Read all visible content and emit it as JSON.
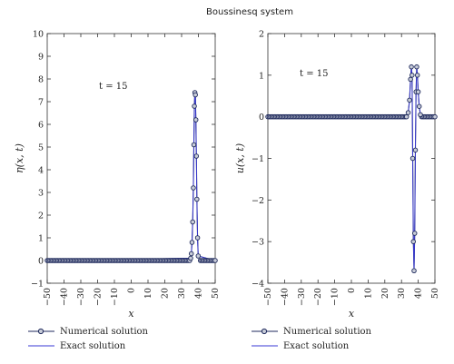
{
  "figure_title": "Boussinesq system",
  "colors": {
    "numerical": "#1f2a5c",
    "exact": "#3a3ad6",
    "marker_fill": "#c8ccd8"
  },
  "legend": {
    "numerical_label": "Numerical solution",
    "exact_label": "Exact solution"
  },
  "chart_data": [
    {
      "type": "line",
      "panel": "left",
      "xlabel": "x",
      "ylabel": "η(x, t)",
      "annotation": "t = 15",
      "xlim": [
        -50,
        50
      ],
      "ylim": [
        -1,
        10
      ],
      "xticks": [
        -50,
        -40,
        -30,
        -20,
        -10,
        0,
        10,
        20,
        30,
        40,
        50
      ],
      "yticks": [
        -1,
        0,
        1,
        2,
        3,
        4,
        5,
        6,
        7,
        8,
        9,
        10
      ],
      "series": [
        {
          "name": "Numerical solution",
          "x": [
            -50,
            35.4,
            35.8,
            36.2,
            36.6,
            37.0,
            37.3,
            37.6,
            37.9,
            38.2,
            38.5,
            38.8,
            39.1,
            39.5,
            39.9,
            50
          ],
          "y": [
            0,
            0.1,
            0.3,
            0.8,
            1.7,
            3.2,
            5.1,
            6.8,
            7.4,
            7.3,
            6.2,
            4.6,
            2.7,
            1.0,
            0.2,
            0
          ]
        },
        {
          "name": "Exact solution",
          "x": [
            -50,
            35.4,
            35.8,
            36.2,
            36.6,
            37.0,
            37.3,
            37.6,
            37.9,
            38.2,
            38.5,
            38.8,
            39.1,
            39.5,
            39.9,
            50
          ],
          "y": [
            0,
            0.1,
            0.3,
            0.8,
            1.7,
            3.2,
            5.1,
            6.8,
            7.4,
            7.3,
            6.2,
            4.6,
            2.7,
            1.0,
            0.2,
            0
          ]
        }
      ]
    },
    {
      "type": "line",
      "panel": "right",
      "xlabel": "x",
      "ylabel": "u(x, t)",
      "annotation": "t = 15",
      "xlim": [
        -50,
        50
      ],
      "ylim": [
        -4,
        2
      ],
      "xticks": [
        -50,
        -40,
        -30,
        -20,
        -10,
        0,
        10,
        20,
        30,
        40,
        50
      ],
      "yticks": [
        -4,
        -3,
        -2,
        -1,
        0,
        1,
        2
      ],
      "series": [
        {
          "name": "Numerical solution",
          "x": [
            -50,
            33.0,
            34.0,
            34.8,
            35.4,
            35.9,
            36.3,
            36.7,
            37.1,
            37.5,
            37.9,
            38.3,
            38.7,
            39.1,
            39.5,
            40.0,
            40.6,
            41.3,
            50
          ],
          "y": [
            0,
            0.0,
            0.1,
            0.4,
            0.9,
            1.2,
            1.0,
            -1.0,
            -3.0,
            -3.7,
            -2.8,
            -0.8,
            0.6,
            1.2,
            1.0,
            0.6,
            0.25,
            0.05,
            0
          ]
        },
        {
          "name": "Exact solution",
          "x": [
            -50,
            33.0,
            34.0,
            34.8,
            35.4,
            35.9,
            36.3,
            36.7,
            37.1,
            37.5,
            37.9,
            38.3,
            38.7,
            39.1,
            39.5,
            40.0,
            40.6,
            41.3,
            50
          ],
          "y": [
            0,
            0.0,
            0.1,
            0.4,
            0.9,
            1.2,
            1.0,
            -1.0,
            -3.0,
            -3.7,
            -2.8,
            -0.8,
            0.6,
            1.2,
            1.0,
            0.6,
            0.25,
            0.05,
            0
          ]
        }
      ]
    }
  ]
}
